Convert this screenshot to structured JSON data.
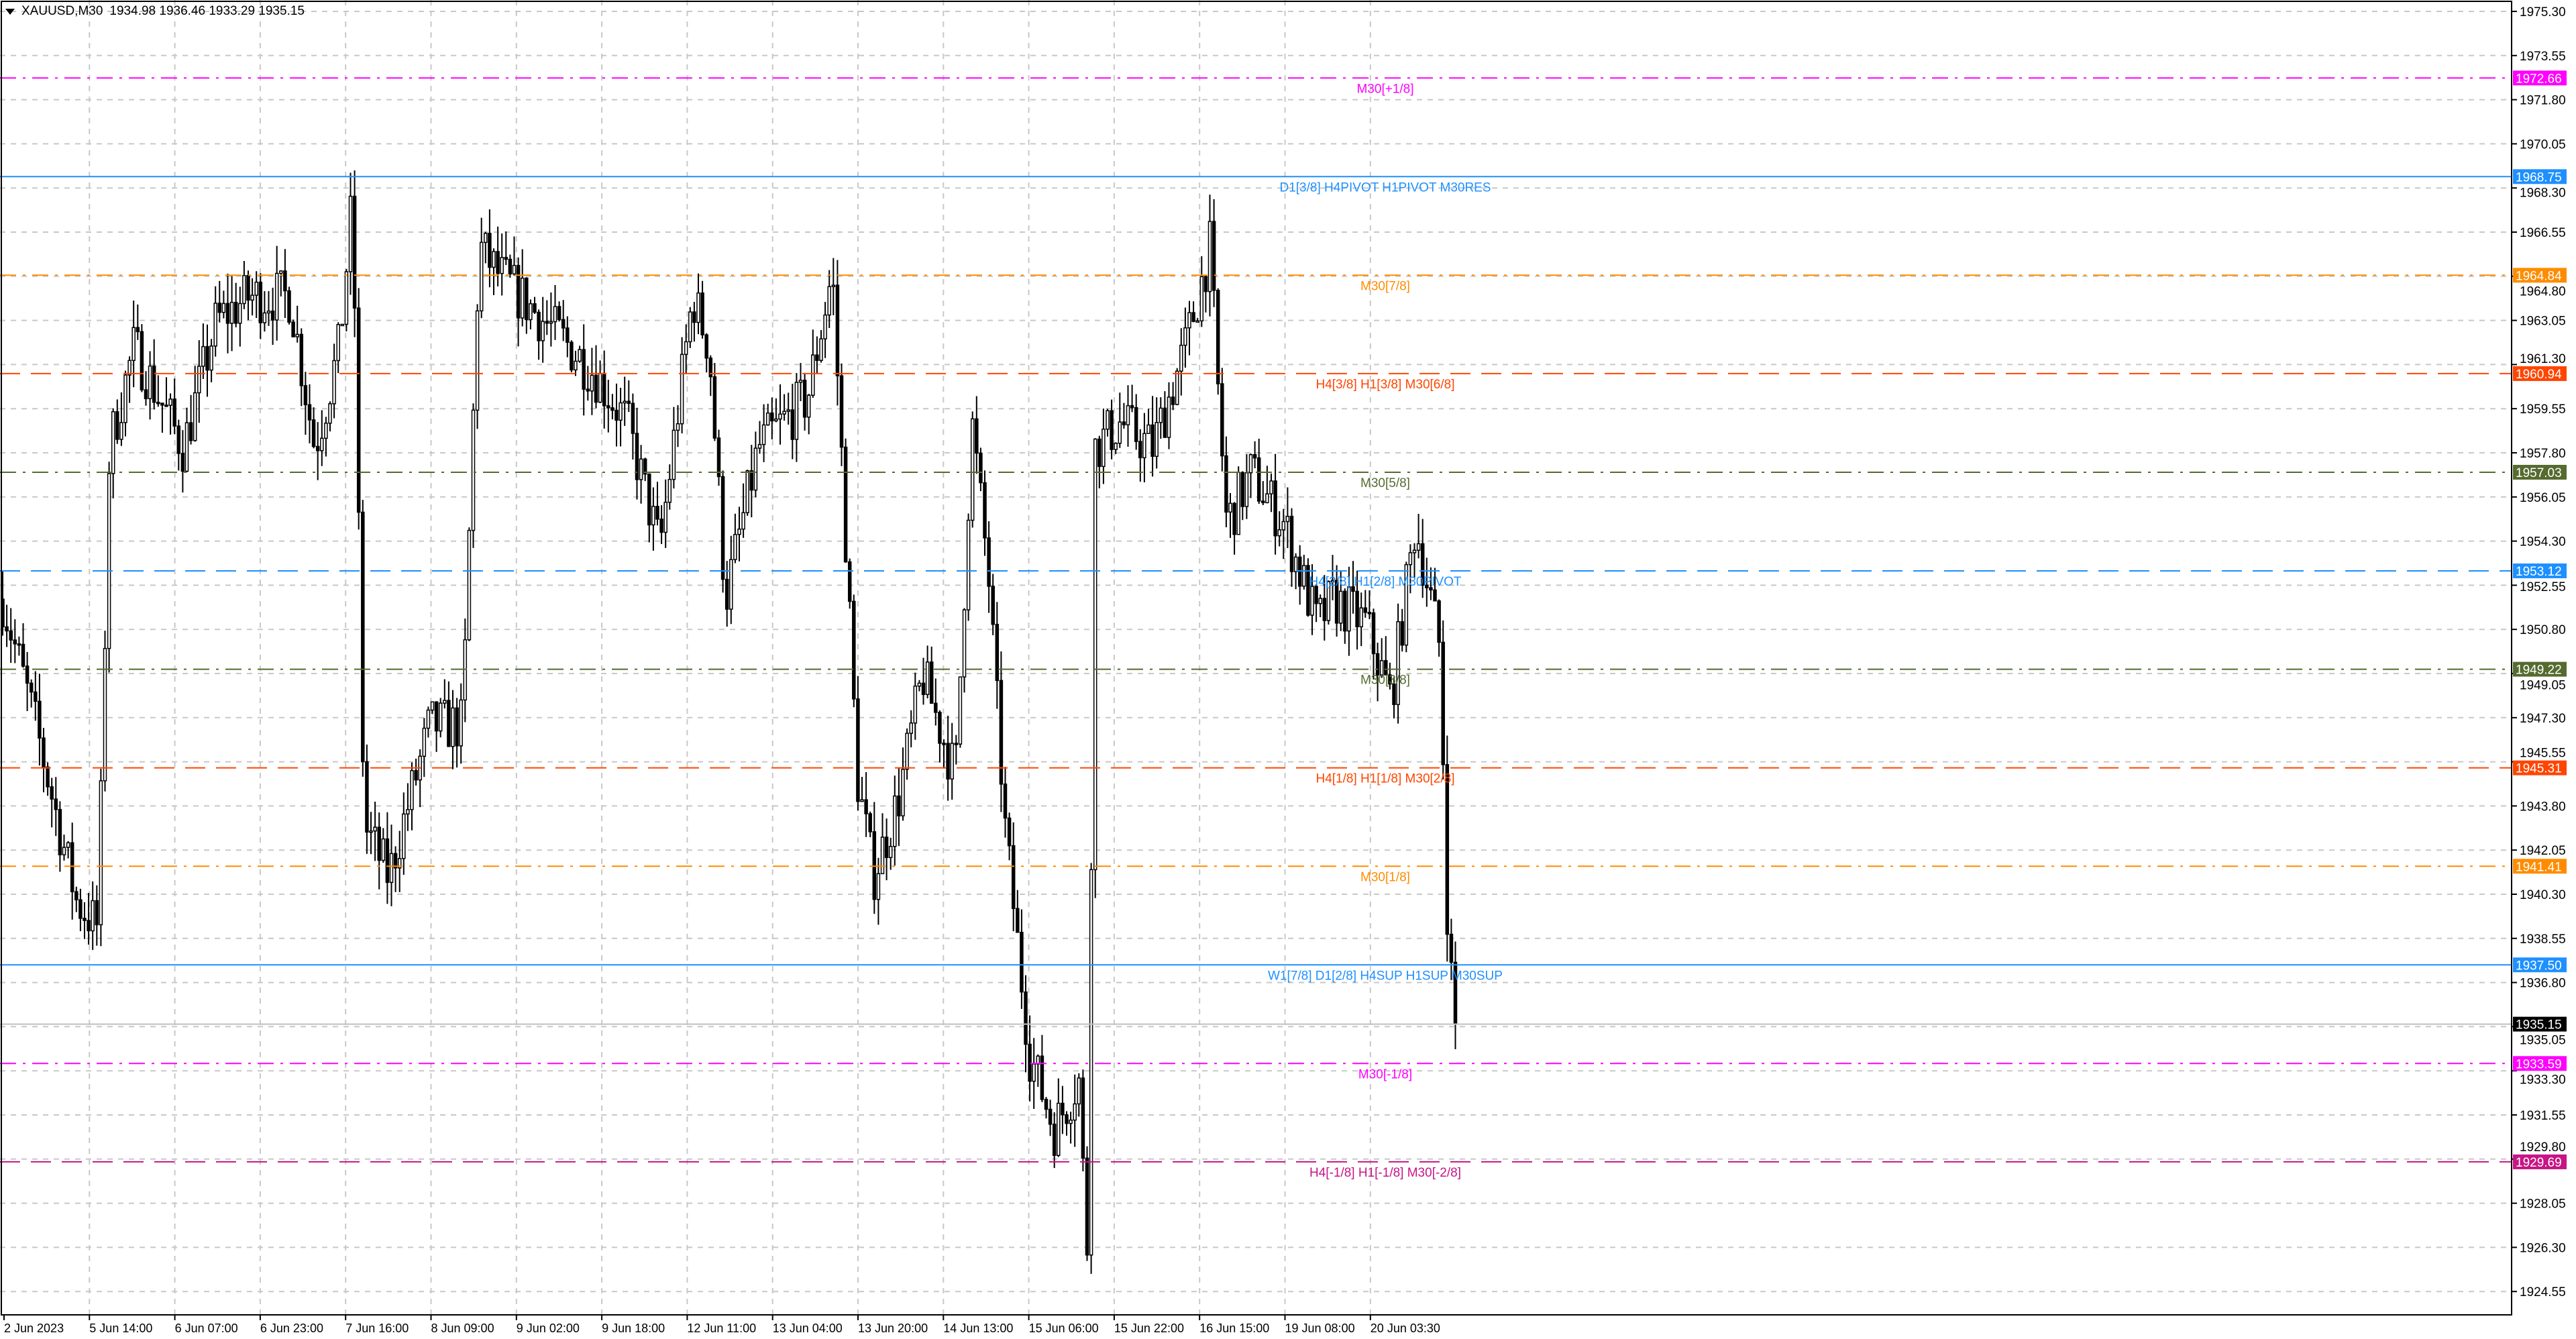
{
  "header": {
    "symbol": "XAUUSD,M30",
    "ohlc": "1934.98 1936.46 1933.29 1935.15",
    "menu_icon": "triangle-down-icon"
  },
  "price_axis": {
    "ticks": [
      "1975.30",
      "1973.55",
      "1971.80",
      "1970.05",
      "1968.30",
      "1966.55",
      "1964.80",
      "1963.05",
      "1961.30",
      "1959.55",
      "1957.80",
      "1956.05",
      "1954.30",
      "1952.55",
      "1950.80",
      "1949.05",
      "1947.30",
      "1945.55",
      "1943.80",
      "1942.05",
      "1940.30",
      "1938.55",
      "1936.80",
      "1935.05",
      "1933.30",
      "1931.55",
      "1929.80",
      "1928.05",
      "1926.30",
      "1924.55"
    ],
    "range": [
      1924.55,
      1975.3
    ]
  },
  "time_axis": {
    "labels": [
      "2 Jun 2023",
      "5 Jun 14:00",
      "6 Jun 07:00",
      "6 Jun 23:00",
      "7 Jun 16:00",
      "8 Jun 09:00",
      "9 Jun 02:00",
      "9 Jun 18:00",
      "12 Jun 11:00",
      "13 Jun 04:00",
      "13 Jun 20:00",
      "14 Jun 13:00",
      "15 Jun 06:00",
      "15 Jun 22:00",
      "16 Jun 15:00",
      "19 Jun 08:00",
      "20 Jun 03:30"
    ]
  },
  "bid": {
    "price": "1935.15",
    "color": "#000000"
  },
  "levels": [
    {
      "price": "1972.66",
      "label": "M30[+1/8]",
      "color": "#ff00ff",
      "style": "dashdot"
    },
    {
      "price": "1968.75",
      "label": "D1[3/8] H4PIVOT H1PIVOT M30RES",
      "color": "#1e90ff",
      "style": "solid"
    },
    {
      "price": "1964.84",
      "label": "M30[7/8]",
      "color": "#ff8c00",
      "style": "dashdot"
    },
    {
      "price": "1960.94",
      "label": "H4[3/8] H1[3/8] M30[6/8]",
      "color": "#ff4500",
      "style": "dashed"
    },
    {
      "price": "1957.03",
      "label": "M30[5/8]",
      "color": "#556b2f",
      "style": "dashdot"
    },
    {
      "price": "1953.12",
      "label": "H4[2/8] H1[2/8] M30PIVOT",
      "color": "#1e90ff",
      "style": "dashed"
    },
    {
      "price": "1949.22",
      "label": "M30[3/8]",
      "color": "#556b2f",
      "style": "dashdot"
    },
    {
      "price": "1945.31",
      "label": "H4[1/8] H1[1/8] M30[2/8]",
      "color": "#ff4500",
      "style": "dashed"
    },
    {
      "price": "1941.41",
      "label": "M30[1/8]",
      "color": "#ff8c00",
      "style": "dashdot"
    },
    {
      "price": "1937.50",
      "label": "W1[7/8] D1[2/8] H4SUP H1SUP M30SUP",
      "color": "#1e90ff",
      "style": "solid"
    },
    {
      "price": "1933.59",
      "label": "M30[-1/8]",
      "color": "#ff00ff",
      "style": "dashdot"
    },
    {
      "price": "1929.69",
      "label": "H4[-1/8] H1[-1/8] M30[-2/8]",
      "color": "#c71585",
      "style": "dashed"
    }
  ],
  "chart_data": {
    "type": "candlestick",
    "timeframe": "M30",
    "approx_price_path": [
      [
        "2 Jun 2023",
        1952
      ],
      [
        "",
        1947
      ],
      [
        "",
        1940
      ],
      [
        "",
        1939
      ],
      [
        "5 Jun 14:00",
        1958
      ],
      [
        "",
        1962
      ],
      [
        "6 Jun 07:00",
        1958
      ],
      [
        "",
        1963
      ],
      [
        "6 Jun 23:00",
        1964
      ],
      [
        "",
        1964
      ],
      [
        "",
        1958
      ],
      [
        "",
        1962
      ],
      [
        "7 Jun 16:00",
        1968
      ],
      [
        "",
        1943
      ],
      [
        "",
        1941
      ],
      [
        "8 Jun 09:00",
        1947
      ],
      [
        "",
        1947
      ],
      [
        "",
        1966
      ],
      [
        "",
        1965
      ],
      [
        "9 Jun 02:00",
        1963
      ],
      [
        "",
        1961
      ],
      [
        "9 Jun 18:00",
        1959
      ],
      [
        "",
        1954
      ],
      [
        "12 Jun 11:00",
        1964
      ],
      [
        "",
        1962
      ],
      [
        "",
        1952
      ],
      [
        "13 Jun 04:00",
        1958
      ],
      [
        "",
        1960
      ],
      [
        "",
        1965
      ],
      [
        "",
        1952
      ],
      [
        "13 Jun 20:00",
        1945
      ],
      [
        "",
        1941
      ],
      [
        "",
        1944
      ],
      [
        "",
        1949
      ],
      [
        "14 Jun 13:00",
        1945
      ],
      [
        "",
        1959
      ],
      [
        "",
        1953
      ],
      [
        "",
        1943
      ],
      [
        "15 Jun 06:00",
        1934
      ],
      [
        "",
        1931
      ],
      [
        "",
        1933
      ],
      [
        "",
        1926
      ],
      [
        "",
        1958
      ],
      [
        "15 Jun 22:00",
        1959
      ],
      [
        "",
        1958
      ],
      [
        "",
        1962
      ],
      [
        "16 Jun 15:00",
        1966
      ],
      [
        "",
        1960
      ],
      [
        "",
        1955
      ],
      [
        "",
        1957
      ],
      [
        "19 Jun 08:00",
        1955
      ],
      [
        "",
        1951
      ],
      [
        "",
        1952
      ],
      [
        "20 Jun 03:30",
        1951
      ],
      [
        "",
        1948
      ],
      [
        "",
        1955
      ],
      [
        "",
        1950
      ],
      [
        "",
        1938
      ],
      [
        "",
        1935.15
      ]
    ],
    "ylim": [
      1924.55,
      1975.3
    ],
    "grid": true
  }
}
